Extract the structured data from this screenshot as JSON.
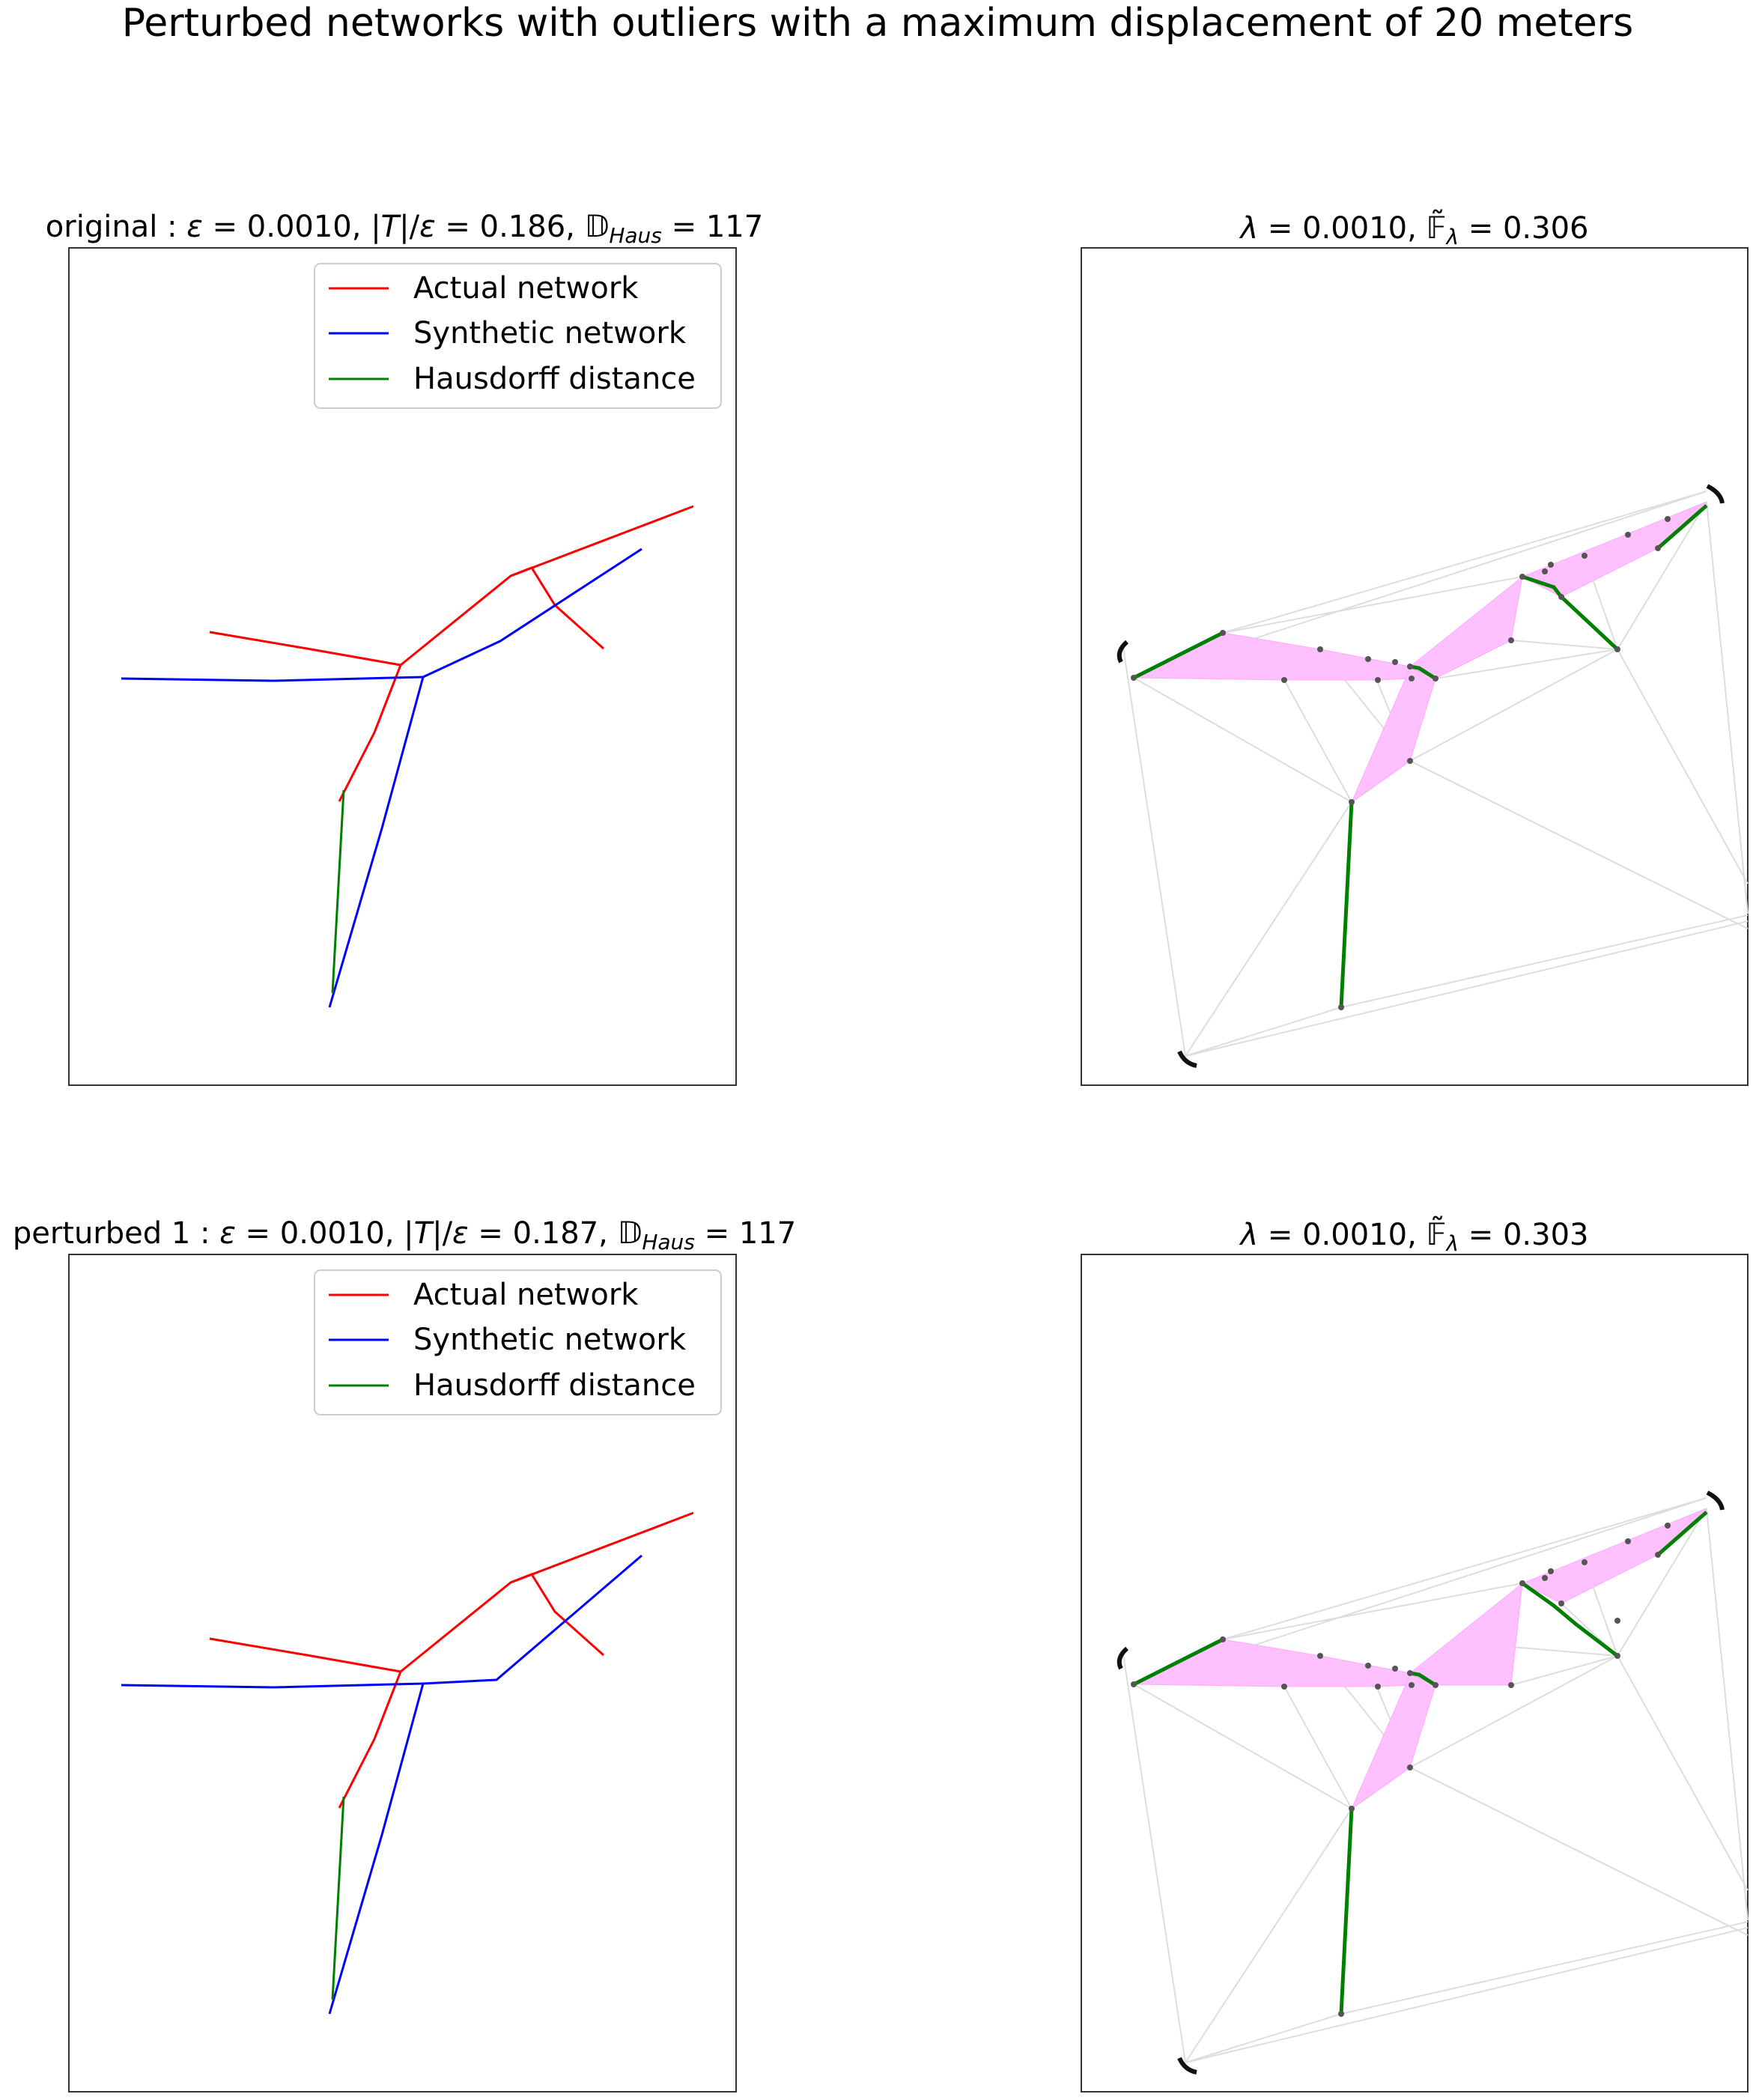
{
  "figure": {
    "title": "Perturbed networks with outliers with a maximum displacement of 20 meters"
  },
  "legend": {
    "actual": "Actual network",
    "synthetic": "Synthetic network",
    "hausdorff": "Hausdorff distance"
  },
  "colors": {
    "actual": "#ff0000",
    "synthetic": "#0000ff",
    "hausdorff": "#008000",
    "triangle_fill": "#ffc0ff",
    "grid_edge": "#cccccc",
    "node": "#555555"
  },
  "rows": [
    {
      "left_title": {
        "prefix": "original : ",
        "eps": "0.0010",
        "ratio": "0.186",
        "haus": "117"
      },
      "right_title": {
        "lambda": "0.0010",
        "f": "0.306"
      }
    },
    {
      "left_title": {
        "prefix": "perturbed 1 : ",
        "eps": "0.0010",
        "ratio": "0.187",
        "haus": "117"
      },
      "right_title": {
        "lambda": "0.0010",
        "f": "0.303"
      }
    }
  ]
}
